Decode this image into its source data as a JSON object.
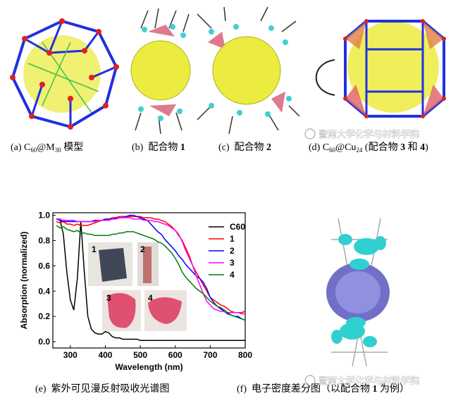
{
  "captions": {
    "a": [
      "(a) C",
      "60",
      "@M",
      "30",
      " 模型"
    ],
    "b": [
      "(b)  配合物 ",
      "1"
    ],
    "c": [
      "(c)  配合物 ",
      "2"
    ],
    "d": [
      "(d) C",
      "60",
      "@Cu",
      "24",
      " (配合物 ",
      "3",
      " 和 ",
      "4",
      ")"
    ],
    "e": [
      "(e)  紫外可见漫反射吸收光谱图"
    ],
    "f": [
      "(f)  电子密度差分图（以配合物 ",
      "1",
      " 为例）"
    ]
  },
  "watermarks": [
    "暨南大学化学与材料学院",
    "暨南大学化学与材料学院"
  ],
  "chart_data": {
    "type": "line",
    "x_label": "Wavelength (nm)",
    "y_label": "Absorption (normalized)",
    "xlim": [
      250,
      800
    ],
    "xticks": [
      300,
      400,
      500,
      600,
      700,
      800
    ],
    "ylim": [
      -0.05,
      1.02
    ],
    "yticks": [
      {
        "value": 0,
        "label": "0.0"
      },
      0.2,
      0.4,
      0.6,
      0.8,
      {
        "value": 1,
        "label": "1.0"
      }
    ],
    "legend": "upper right",
    "annotations": [
      "1",
      "2",
      "3",
      "4"
    ],
    "x": [
      260,
      270,
      280,
      290,
      300,
      310,
      320,
      330,
      340,
      350,
      360,
      370,
      380,
      390,
      400,
      410,
      420,
      430,
      440,
      450,
      460,
      470,
      480,
      490,
      500,
      510,
      520,
      530,
      540,
      550,
      560,
      570,
      580,
      590,
      600,
      610,
      620,
      630,
      640,
      650,
      660,
      670,
      680,
      690,
      700,
      710,
      720,
      730,
      740,
      750,
      760,
      770,
      780,
      790,
      800
    ],
    "series": [
      {
        "name": "C60",
        "color": "#000000",
        "values": [
          0.97,
          0.97,
          0.85,
          0.55,
          0.33,
          0.25,
          0.5,
          0.95,
          0.55,
          0.2,
          0.1,
          0.07,
          0.06,
          0.06,
          0.08,
          0.07,
          0.04,
          0.03,
          0.03,
          0.02,
          0.02,
          0.02,
          0.02,
          0.02,
          0.01,
          0.01,
          0.01,
          0.01,
          0.01,
          0.01,
          0.01,
          0.01,
          0.01,
          0.01,
          0.01,
          0.01,
          0.01,
          0.01,
          0.01,
          0.01,
          0.01,
          0.01,
          0.01,
          0.01,
          0.01,
          0.01,
          0.01,
          0.01,
          0.01,
          0.01,
          0.01,
          0.01,
          0.01,
          0.01,
          0.01
        ]
      },
      {
        "name": "1",
        "color": "#ff0000",
        "values": [
          0.95,
          0.94,
          0.95,
          0.93,
          0.93,
          0.92,
          0.93,
          0.92,
          0.92,
          0.92,
          0.93,
          0.94,
          0.95,
          0.96,
          0.97,
          0.97,
          0.98,
          0.98,
          0.99,
          0.99,
          0.99,
          0.99,
          0.99,
          0.99,
          0.99,
          0.98,
          0.98,
          0.98,
          0.97,
          0.97,
          0.96,
          0.95,
          0.93,
          0.91,
          0.88,
          0.84,
          0.8,
          0.74,
          0.68,
          0.6,
          0.55,
          0.5,
          0.45,
          0.4,
          0.35,
          0.33,
          0.31,
          0.29,
          0.28,
          0.26,
          0.24,
          0.23,
          0.23,
          0.23,
          0.24
        ]
      },
      {
        "name": "2",
        "color": "#0000ff",
        "values": [
          0.97,
          0.96,
          0.95,
          0.95,
          0.95,
          0.95,
          0.95,
          0.95,
          0.95,
          0.95,
          0.95,
          0.96,
          0.96,
          0.96,
          0.97,
          0.97,
          0.97,
          0.98,
          0.98,
          0.98,
          0.99,
          1.0,
          1.0,
          0.99,
          0.98,
          0.97,
          0.96,
          0.93,
          0.9,
          0.87,
          0.85,
          0.81,
          0.78,
          0.75,
          0.72,
          0.68,
          0.65,
          0.61,
          0.58,
          0.55,
          0.52,
          0.5,
          0.47,
          0.42,
          0.35,
          0.31,
          0.28,
          0.26,
          0.24,
          0.22,
          0.21,
          0.2,
          0.2,
          0.18,
          0.17
        ]
      },
      {
        "name": "3",
        "color": "#ff00ff",
        "values": [
          0.97,
          0.97,
          0.96,
          0.96,
          0.96,
          0.96,
          0.95,
          0.95,
          0.95,
          0.95,
          0.95,
          0.95,
          0.96,
          0.96,
          0.96,
          0.96,
          0.97,
          0.97,
          0.98,
          0.98,
          0.98,
          0.98,
          0.97,
          0.97,
          0.97,
          0.96,
          0.96,
          0.96,
          0.95,
          0.95,
          0.94,
          0.93,
          0.92,
          0.9,
          0.88,
          0.85,
          0.79,
          0.72,
          0.66,
          0.6,
          0.52,
          0.45,
          0.38,
          0.32,
          0.29,
          0.26,
          0.25,
          0.24,
          0.24,
          0.23,
          0.23,
          0.23,
          0.23,
          0.22,
          0.22
        ]
      },
      {
        "name": "4",
        "color": "#008000",
        "values": [
          0.92,
          0.9,
          0.91,
          0.89,
          0.88,
          0.87,
          0.88,
          0.86,
          0.86,
          0.85,
          0.85,
          0.84,
          0.84,
          0.84,
          0.84,
          0.84,
          0.85,
          0.85,
          0.86,
          0.86,
          0.87,
          0.87,
          0.87,
          0.86,
          0.85,
          0.84,
          0.83,
          0.82,
          0.81,
          0.79,
          0.78,
          0.76,
          0.73,
          0.7,
          0.66,
          0.61,
          0.55,
          0.51,
          0.48,
          0.45,
          0.42,
          0.4,
          0.38,
          0.35,
          0.32,
          0.3,
          0.28,
          0.27,
          0.25,
          0.23,
          0.21,
          0.2,
          0.19,
          0.18,
          0.17
        ]
      }
    ]
  }
}
